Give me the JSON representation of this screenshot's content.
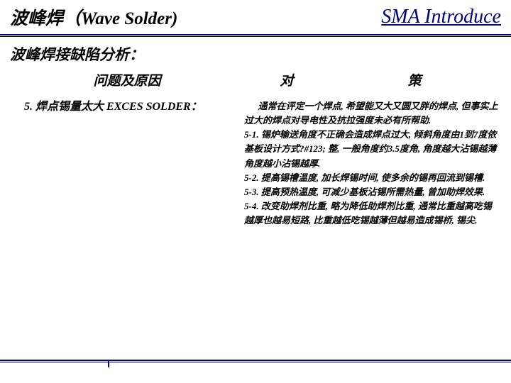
{
  "header": {
    "left": "波峰焊（Wave Solder)",
    "right": "SMA Introduce"
  },
  "section_title": "波峰焊接缺陷分析：",
  "columns": {
    "left_header": "问题及原因",
    "right_header_1": "对",
    "right_header_2": "策"
  },
  "item": {
    "number_label": "5. 焊点锡量太大 EXCES SOLDER："
  },
  "body": {
    "p1": "通常在评定一个焊点, 希望能又大又圆又胖的焊点, 但事实上过大的焊点对导电性及抗拉强度未必有所帮助.",
    "p2": "5-1. 锡炉输送角度不正确会造成焊点过大, 倾斜角度由1到7度依基板设计方式?#123; 整, 一般角度约3.5度角, 角度越大沾锡越薄角度越小沾锡越厚.",
    "p3": "5-2. 提高锡槽温度, 加长焊锡时间, 使多余的锡再回流到锡槽.",
    "p4": "5-3. 提高预热温度, 可减少基板沾锡所需热量, 曾加助焊效果.",
    "p5": "5-4. 改变助焊剂比重, 略为降低助焊剂比重, 通常比重越高吃锡越厚也越易短路, 比重越低吃锡越薄但越易造成锡桥, 锡尖."
  },
  "colors": {
    "navy": "#000080",
    "text": "#000000",
    "bg": "#ffffff"
  }
}
